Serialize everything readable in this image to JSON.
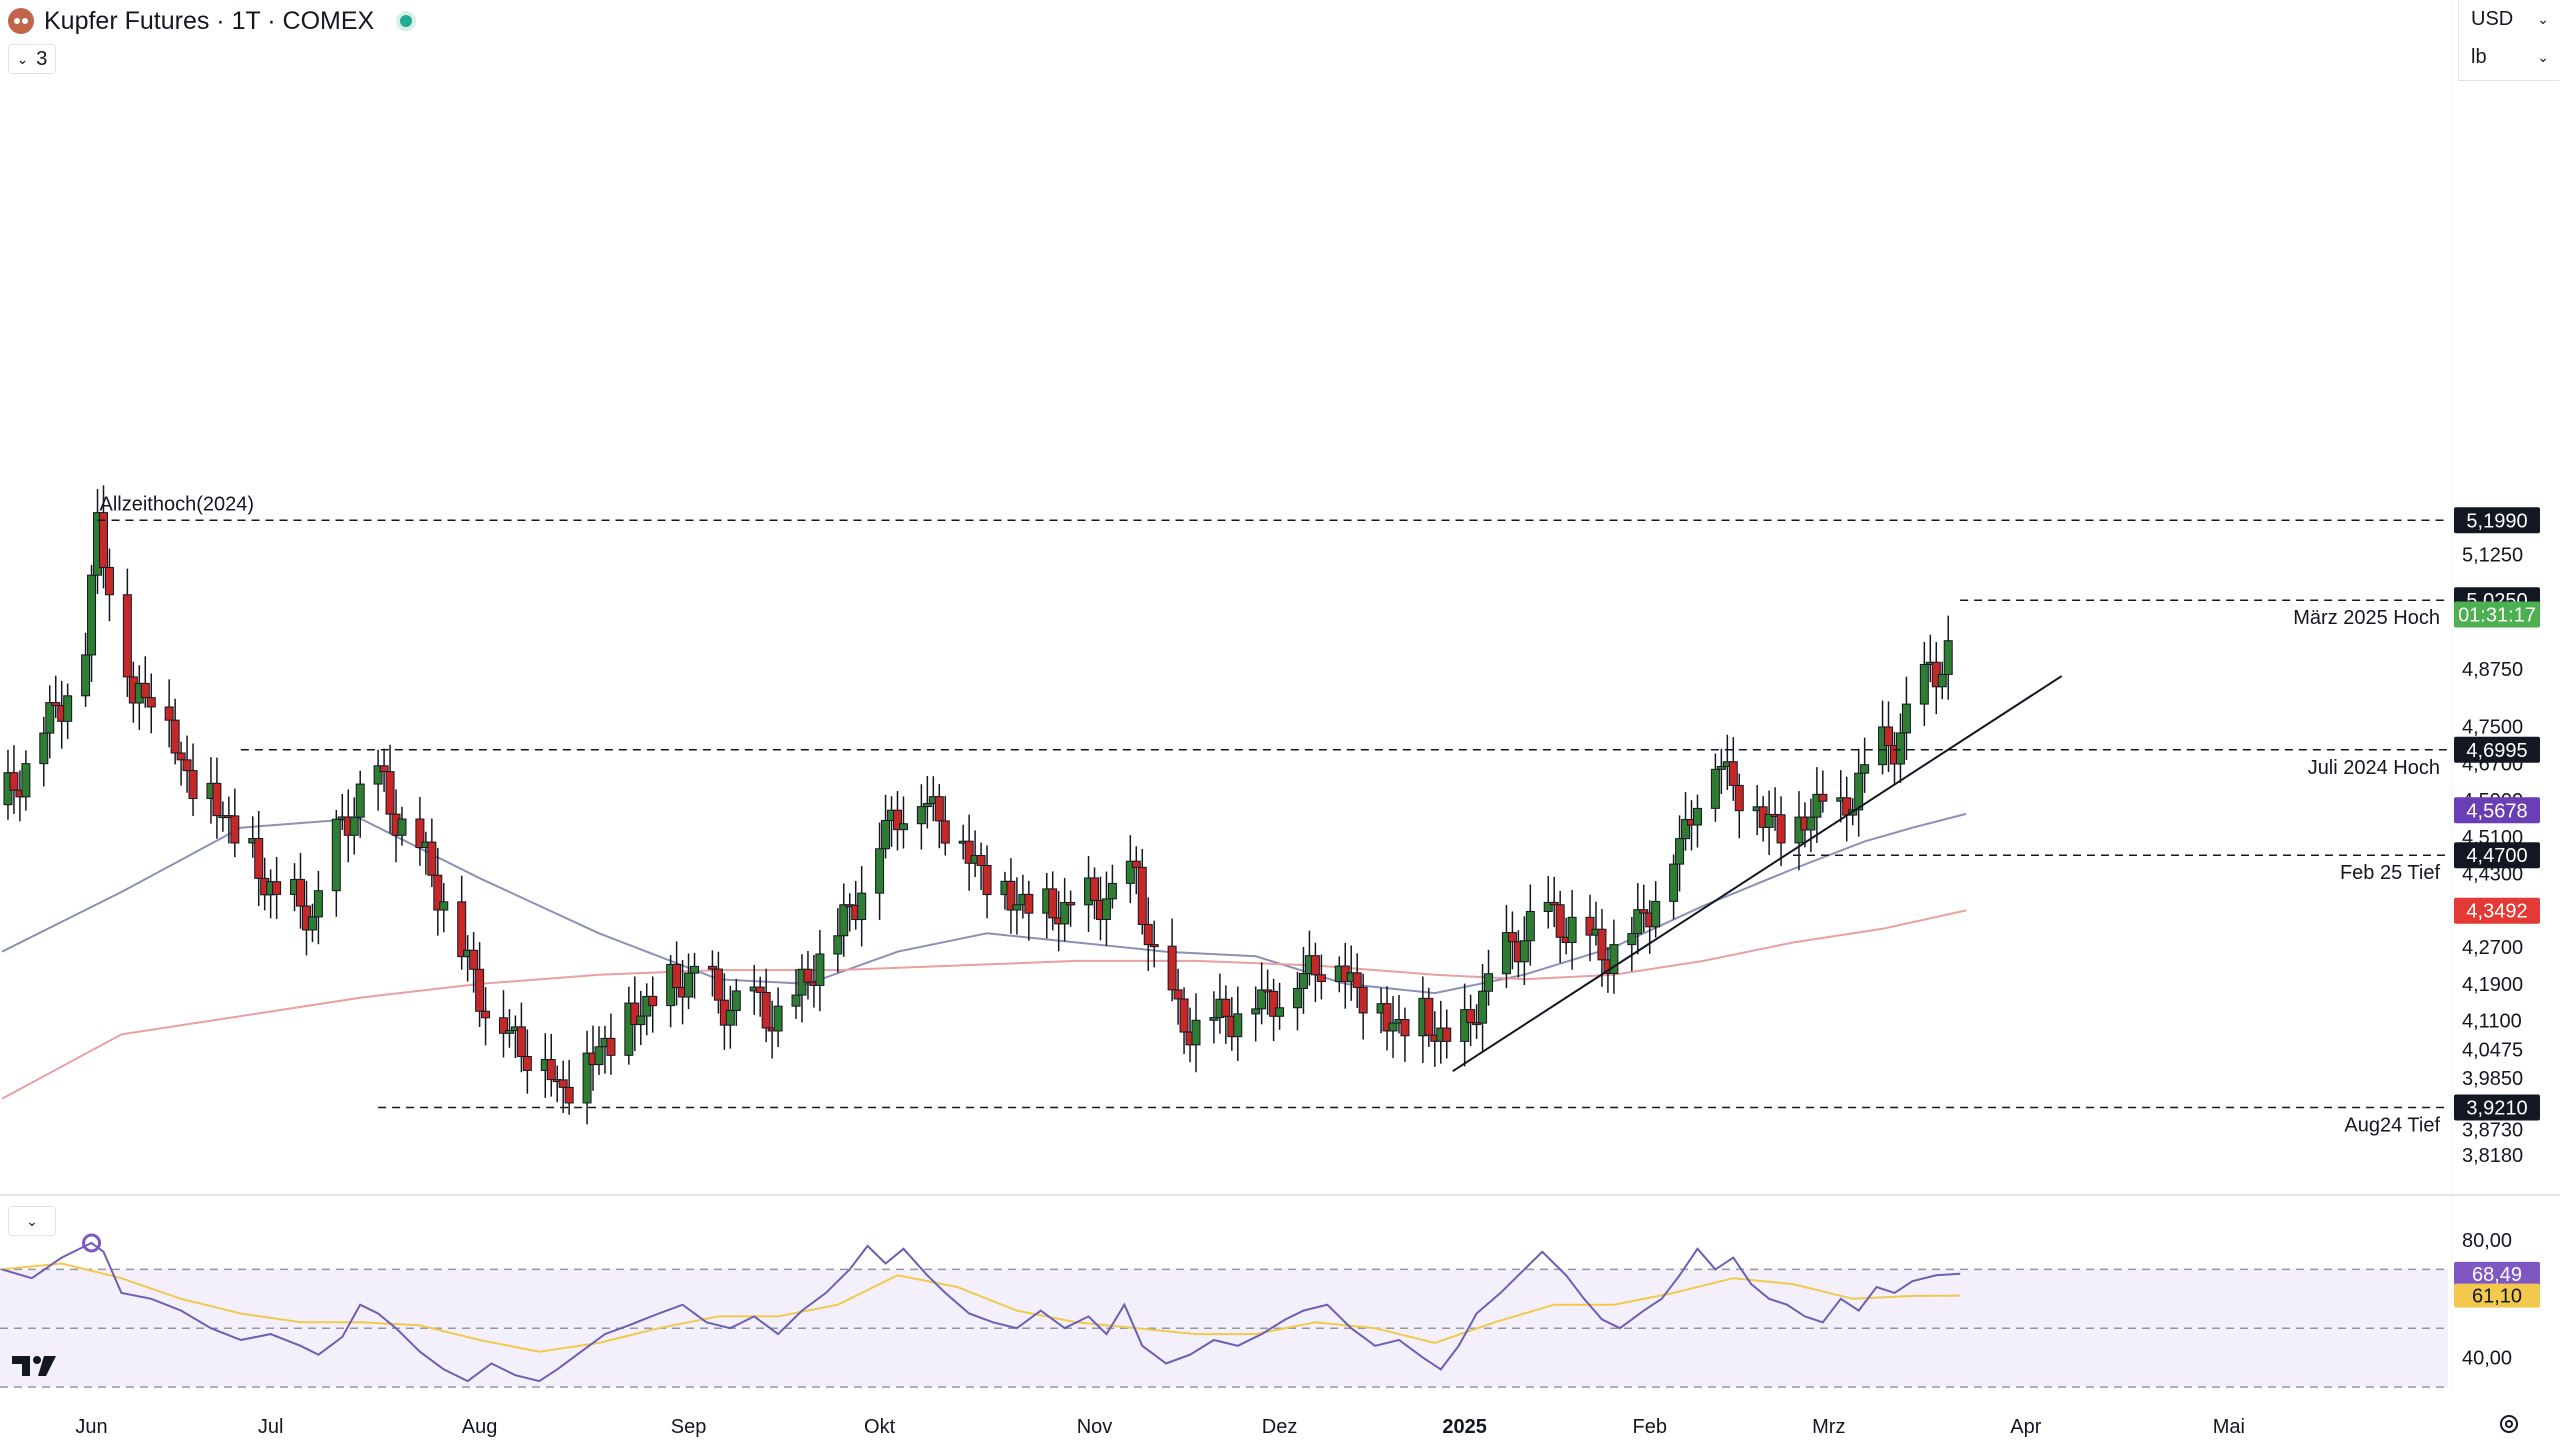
{
  "header": {
    "title": "Kupfer Futures · 1T · COMEX",
    "collapse_count": "3",
    "currency": "USD",
    "unit": "lb"
  },
  "colors": {
    "up": "#2e7d32",
    "down": "#c62828",
    "ma_short": "#8c8fb6",
    "ma_long": "#e8a0a0",
    "rsi": "#6a5fb5",
    "rsi_ma": "#f2c94c",
    "rsi_band": "#f3f0fb",
    "trendline": "#131722"
  },
  "chart_data": {
    "type": "candlestick",
    "symbol": "Kupfer Futures",
    "interval": "1T",
    "exchange": "COMEX",
    "y_axis": {
      "ticks": [
        "5,1250",
        "4,8750",
        "4,7500",
        "4,6700",
        "4,5900",
        "4,5100",
        "4,4300",
        "4,2700",
        "4,1900",
        "4,1100",
        "4,0475",
        "3,9850",
        "3,8730",
        "3,8180"
      ],
      "ylim": [
        3.8,
        5.27
      ]
    },
    "x_axis": {
      "ticks": [
        "Jun",
        "Jul",
        "Aug",
        "Sep",
        "Okt",
        "Nov",
        "Dez",
        "2025",
        "Feb",
        "Mrz",
        "Apr",
        "Mai"
      ],
      "tick_days": [
        15,
        45,
        80,
        115,
        147,
        183,
        214,
        245,
        276,
        306,
        339,
        373
      ]
    },
    "series_points": [
      [
        0,
        4.58
      ],
      [
        8,
        4.76
      ],
      [
        14,
        4.92
      ],
      [
        16,
        5.19
      ],
      [
        18,
        5.08
      ],
      [
        22,
        4.8
      ],
      [
        26,
        4.86
      ],
      [
        30,
        4.66
      ],
      [
        34,
        4.62
      ],
      [
        38,
        4.54
      ],
      [
        40,
        4.51
      ],
      [
        44,
        4.41
      ],
      [
        48,
        4.37
      ],
      [
        52,
        4.34
      ],
      [
        56,
        4.5
      ],
      [
        62,
        4.66
      ],
      [
        66,
        4.56
      ],
      [
        70,
        4.48
      ],
      [
        74,
        4.38
      ],
      [
        77,
        4.26
      ],
      [
        81,
        4.15
      ],
      [
        85,
        4.08
      ],
      [
        88,
        4.05
      ],
      [
        91,
        4.03
      ],
      [
        93,
        3.96
      ],
      [
        96,
        3.99
      ],
      [
        99,
        4.04
      ],
      [
        103,
        4.08
      ],
      [
        107,
        4.14
      ],
      [
        112,
        4.18
      ],
      [
        117,
        4.23
      ],
      [
        120,
        4.14
      ],
      [
        124,
        4.16
      ],
      [
        128,
        4.13
      ],
      [
        132,
        4.12
      ],
      [
        136,
        4.24
      ],
      [
        140,
        4.3
      ],
      [
        144,
        4.41
      ],
      [
        148,
        4.53
      ],
      [
        151,
        4.58
      ],
      [
        155,
        4.59
      ],
      [
        159,
        4.53
      ],
      [
        163,
        4.46
      ],
      [
        167,
        4.39
      ],
      [
        171,
        4.37
      ],
      [
        175,
        4.35
      ],
      [
        179,
        4.36
      ],
      [
        183,
        4.37
      ],
      [
        186,
        4.39
      ],
      [
        190,
        4.42
      ],
      [
        193,
        4.25
      ],
      [
        197,
        4.12
      ],
      [
        200,
        4.1
      ],
      [
        204,
        4.12
      ],
      [
        208,
        4.14
      ],
      [
        212,
        4.16
      ],
      [
        216,
        4.18
      ],
      [
        219,
        4.23
      ],
      [
        223,
        4.25
      ],
      [
        226,
        4.2
      ],
      [
        230,
        4.14
      ],
      [
        234,
        4.1
      ],
      [
        238,
        4.12
      ],
      [
        241,
        4.08
      ],
      [
        244,
        4.05
      ],
      [
        247,
        4.15
      ],
      [
        250,
        4.22
      ],
      [
        253,
        4.27
      ],
      [
        257,
        4.34
      ],
      [
        261,
        4.33
      ],
      [
        265,
        4.3
      ],
      [
        268,
        4.26
      ],
      [
        271,
        4.28
      ],
      [
        275,
        4.34
      ],
      [
        279,
        4.44
      ],
      [
        282,
        4.53
      ],
      [
        285,
        4.65
      ],
      [
        288,
        4.68
      ],
      [
        291,
        4.61
      ],
      [
        294,
        4.57
      ],
      [
        297,
        4.55
      ],
      [
        300,
        4.49
      ],
      [
        302,
        4.56
      ],
      [
        305,
        4.6
      ],
      [
        308,
        4.55
      ],
      [
        311,
        4.64
      ],
      [
        314,
        4.69
      ],
      [
        317,
        4.72
      ],
      [
        320,
        4.8
      ],
      [
        323,
        4.87
      ],
      [
        326,
        4.91
      ],
      [
        328,
        4.97
      ]
    ],
    "moving_averages": [
      {
        "points": [
          [
            0,
            4.26
          ],
          [
            20,
            4.39
          ],
          [
            40,
            4.53
          ],
          [
            60,
            4.55
          ],
          [
            80,
            4.42
          ],
          [
            100,
            4.3
          ],
          [
            120,
            4.2
          ],
          [
            135,
            4.19
          ],
          [
            150,
            4.26
          ],
          [
            165,
            4.3
          ],
          [
            180,
            4.28
          ],
          [
            195,
            4.26
          ],
          [
            210,
            4.25
          ],
          [
            225,
            4.19
          ],
          [
            240,
            4.17
          ],
          [
            255,
            4.21
          ],
          [
            270,
            4.27
          ],
          [
            285,
            4.36
          ],
          [
            300,
            4.44
          ],
          [
            312,
            4.5
          ],
          [
            320,
            4.53
          ],
          [
            329,
            4.56
          ]
        ]
      },
      {
        "points": [
          [
            0,
            3.94
          ],
          [
            20,
            4.08
          ],
          [
            40,
            4.12
          ],
          [
            60,
            4.16
          ],
          [
            80,
            4.19
          ],
          [
            100,
            4.21
          ],
          [
            120,
            4.22
          ],
          [
            140,
            4.22
          ],
          [
            160,
            4.23
          ],
          [
            180,
            4.24
          ],
          [
            200,
            4.24
          ],
          [
            220,
            4.23
          ],
          [
            240,
            4.21
          ],
          [
            255,
            4.2
          ],
          [
            270,
            4.21
          ],
          [
            285,
            4.24
          ],
          [
            300,
            4.28
          ],
          [
            315,
            4.31
          ],
          [
            329,
            4.35
          ]
        ]
      }
    ],
    "horizontal_levels": [
      {
        "label": "Allzeithoch(2024)",
        "value": "5,1990",
        "level": 5.199
      },
      {
        "label": "März 2025 Hoch",
        "value": "5,0250",
        "level": 5.025
      },
      {
        "label": "Juli 2024 Hoch",
        "value": "4,6995",
        "level": 4.6995
      },
      {
        "label": "Feb 25 Tief",
        "value": "4,4700",
        "level": 4.47
      },
      {
        "label": "Aug24 Tief",
        "value": "3,9210",
        "level": 3.921
      }
    ],
    "price_tags": [
      {
        "value": "5,1990",
        "level": 5.199,
        "color": "#131722"
      },
      {
        "value": "5,0250",
        "level": 5.025,
        "color": "#131722"
      },
      {
        "value": "01:31:17",
        "level": 4.994,
        "color": "#4caf50"
      },
      {
        "value": "4,6995",
        "level": 4.6995,
        "color": "#131722"
      },
      {
        "value": "4,5678",
        "level": 4.5678,
        "color": "#6a3fb5"
      },
      {
        "value": "4,4700",
        "level": 4.47,
        "color": "#131722"
      },
      {
        "value": "4,3492",
        "level": 4.3492,
        "color": "#e53935"
      },
      {
        "value": "3,9210",
        "level": 3.921,
        "color": "#131722"
      }
    ],
    "trendline": {
      "from": [
        243,
        4.0
      ],
      "to": [
        345,
        4.86
      ]
    },
    "rsi": {
      "ticks": [
        "80,00",
        "40,00"
      ],
      "ylim": [
        30,
        82
      ],
      "overbought": 70,
      "oversold": 30,
      "middle": 50,
      "value": "68,49",
      "ma_value": "61,10",
      "points": [
        [
          0,
          70
        ],
        [
          5,
          67
        ],
        [
          10,
          74
        ],
        [
          15,
          79
        ],
        [
          17,
          76
        ],
        [
          20,
          62
        ],
        [
          25,
          60
        ],
        [
          30,
          56
        ],
        [
          35,
          50
        ],
        [
          40,
          46
        ],
        [
          45,
          48
        ],
        [
          50,
          44
        ],
        [
          53,
          41
        ],
        [
          57,
          47
        ],
        [
          60,
          58
        ],
        [
          63,
          55
        ],
        [
          66,
          50
        ],
        [
          70,
          42
        ],
        [
          74,
          36
        ],
        [
          78,
          32
        ],
        [
          82,
          38
        ],
        [
          86,
          34
        ],
        [
          90,
          32
        ],
        [
          93,
          36
        ],
        [
          97,
          42
        ],
        [
          101,
          48
        ],
        [
          105,
          51
        ],
        [
          110,
          55
        ],
        [
          114,
          58
        ],
        [
          118,
          52
        ],
        [
          122,
          50
        ],
        [
          126,
          54
        ],
        [
          130,
          48
        ],
        [
          134,
          56
        ],
        [
          138,
          62
        ],
        [
          142,
          70
        ],
        [
          145,
          78
        ],
        [
          148,
          72
        ],
        [
          151,
          77
        ],
        [
          155,
          68
        ],
        [
          158,
          62
        ],
        [
          162,
          55
        ],
        [
          166,
          52
        ],
        [
          170,
          50
        ],
        [
          174,
          56
        ],
        [
          178,
          50
        ],
        [
          182,
          54
        ],
        [
          185,
          48
        ],
        [
          188,
          58
        ],
        [
          191,
          44
        ],
        [
          195,
          38
        ],
        [
          199,
          41
        ],
        [
          203,
          46
        ],
        [
          207,
          44
        ],
        [
          211,
          48
        ],
        [
          215,
          53
        ],
        [
          218,
          56
        ],
        [
          222,
          58
        ],
        [
          226,
          50
        ],
        [
          230,
          44
        ],
        [
          234,
          46
        ],
        [
          238,
          40
        ],
        [
          241,
          36
        ],
        [
          244,
          44
        ],
        [
          247,
          55
        ],
        [
          251,
          62
        ],
        [
          255,
          70
        ],
        [
          258,
          76
        ],
        [
          262,
          68
        ],
        [
          265,
          60
        ],
        [
          268,
          53
        ],
        [
          271,
          50
        ],
        [
          275,
          56
        ],
        [
          278,
          60
        ],
        [
          281,
          68
        ],
        [
          284,
          77
        ],
        [
          287,
          70
        ],
        [
          290,
          74
        ],
        [
          293,
          65
        ],
        [
          296,
          60
        ],
        [
          299,
          58
        ],
        [
          302,
          54
        ],
        [
          305,
          52
        ],
        [
          308,
          60
        ],
        [
          311,
          56
        ],
        [
          314,
          64
        ],
        [
          317,
          62
        ],
        [
          320,
          66
        ],
        [
          324,
          68
        ],
        [
          328,
          68.5
        ]
      ],
      "ma_points": [
        [
          0,
          70
        ],
        [
          10,
          72
        ],
        [
          20,
          67
        ],
        [
          30,
          60
        ],
        [
          40,
          55
        ],
        [
          50,
          52
        ],
        [
          60,
          52
        ],
        [
          70,
          51
        ],
        [
          80,
          46
        ],
        [
          90,
          42
        ],
        [
          100,
          45
        ],
        [
          110,
          50
        ],
        [
          120,
          54
        ],
        [
          130,
          54
        ],
        [
          140,
          58
        ],
        [
          150,
          68
        ],
        [
          160,
          64
        ],
        [
          170,
          56
        ],
        [
          180,
          52
        ],
        [
          190,
          50
        ],
        [
          200,
          48
        ],
        [
          210,
          48
        ],
        [
          220,
          52
        ],
        [
          230,
          50
        ],
        [
          240,
          45
        ],
        [
          250,
          52
        ],
        [
          260,
          58
        ],
        [
          270,
          58
        ],
        [
          280,
          62
        ],
        [
          290,
          67
        ],
        [
          300,
          65
        ],
        [
          310,
          60
        ],
        [
          320,
          61
        ],
        [
          328,
          61.1
        ]
      ]
    }
  }
}
